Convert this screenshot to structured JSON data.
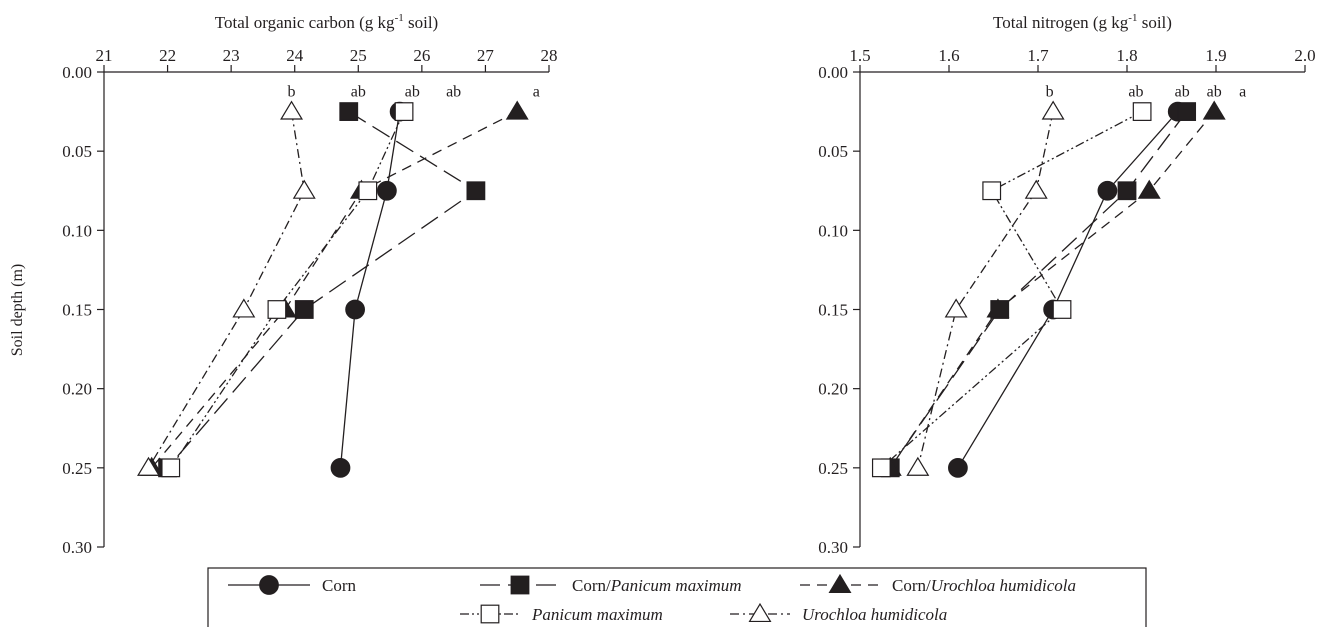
{
  "figure": {
    "ylabel": "Soil depth (m)",
    "legend_entries": [
      {
        "label": "Corn",
        "label_italic": ""
      },
      {
        "label": "Corn/",
        "label_italic": "Panicum maximum"
      },
      {
        "label": "Corn/",
        "label_italic": "Urochloa humidicola"
      },
      {
        "label": "",
        "label_italic": "Panicum maximum"
      },
      {
        "label": "",
        "label_italic": "Urochloa humidicola"
      }
    ]
  },
  "chart_data": [
    {
      "type": "line",
      "xlabel_main": "Total organic carbon (g kg",
      "xlabel_sup": "-1",
      "xlabel_tail": " soil)",
      "ylabel": "Soil depth (m)",
      "xlim": [
        21,
        28
      ],
      "ylim": [
        0.0,
        0.3
      ],
      "x_ticks": [
        "21",
        "22",
        "23",
        "24",
        "25",
        "26",
        "27",
        "28"
      ],
      "y_ticks": [
        "0.00",
        "0.05",
        "0.10",
        "0.15",
        "0.20",
        "0.25",
        "0.30"
      ],
      "y_inverted": true,
      "depths": [
        0.025,
        0.075,
        0.15,
        0.25
      ],
      "series": [
        {
          "name": "Corn",
          "values": [
            25.65,
            25.45,
            24.95,
            24.72
          ],
          "color": "#231f20"
        },
        {
          "name": "Corn/Panicum maximum",
          "values": [
            24.85,
            26.85,
            24.15,
            22.0
          ],
          "color": "#231f20"
        },
        {
          "name": "Corn/Urochloa humidicola",
          "values": [
            27.5,
            25.05,
            23.85,
            21.75
          ],
          "color": "#231f20"
        },
        {
          "name": "Panicum maximum",
          "values": [
            25.72,
            25.15,
            23.72,
            22.05
          ],
          "color": "#231f20"
        },
        {
          "name": "Urochloa humidicola",
          "values": [
            23.95,
            24.15,
            23.2,
            21.7
          ],
          "color": "#231f20"
        }
      ],
      "significance_labels": [
        {
          "text": "b",
          "x": 23.95,
          "depth": 0.013
        },
        {
          "text": "ab",
          "x": 25.0,
          "depth": 0.013
        },
        {
          "text": "ab",
          "x": 25.85,
          "depth": 0.013
        },
        {
          "text": "ab",
          "x": 26.5,
          "depth": 0.013
        },
        {
          "text": "a",
          "x": 27.8,
          "depth": 0.013
        }
      ]
    },
    {
      "type": "line",
      "xlabel_main": "Total nitrogen (g kg",
      "xlabel_sup": "-1",
      "xlabel_tail": " soil)",
      "ylabel": "",
      "xlim": [
        1.5,
        2.0
      ],
      "ylim": [
        0.0,
        0.3
      ],
      "x_ticks": [
        "1.5",
        "1.6",
        "1.7",
        "1.8",
        "1.9",
        "2.0"
      ],
      "y_ticks": [
        "0.00",
        "0.05",
        "0.10",
        "0.15",
        "0.20",
        "0.25",
        "0.30"
      ],
      "y_inverted": true,
      "depths": [
        0.025,
        0.075,
        0.15,
        0.25
      ],
      "series": [
        {
          "name": "Corn",
          "values": [
            1.857,
            1.778,
            1.717,
            1.61
          ],
          "color": "#231f20"
        },
        {
          "name": "Corn/Panicum maximum",
          "values": [
            1.867,
            1.8,
            1.657,
            1.534
          ],
          "color": "#231f20"
        },
        {
          "name": "Corn/Urochloa humidicola",
          "values": [
            1.898,
            1.825,
            1.655,
            1.534
          ],
          "color": "#231f20"
        },
        {
          "name": "Panicum maximum",
          "values": [
            1.817,
            1.648,
            1.727,
            1.524
          ],
          "color": "#231f20"
        },
        {
          "name": "Urochloa humidicola",
          "values": [
            1.717,
            1.698,
            1.608,
            1.565
          ],
          "color": "#231f20"
        }
      ],
      "significance_labels": [
        {
          "text": "b",
          "x": 1.713,
          "depth": 0.013
        },
        {
          "text": "ab",
          "x": 1.81,
          "depth": 0.013
        },
        {
          "text": "ab",
          "x": 1.862,
          "depth": 0.013
        },
        {
          "text": "ab",
          "x": 1.898,
          "depth": 0.013
        },
        {
          "text": "a",
          "x": 1.93,
          "depth": 0.013
        }
      ]
    }
  ]
}
